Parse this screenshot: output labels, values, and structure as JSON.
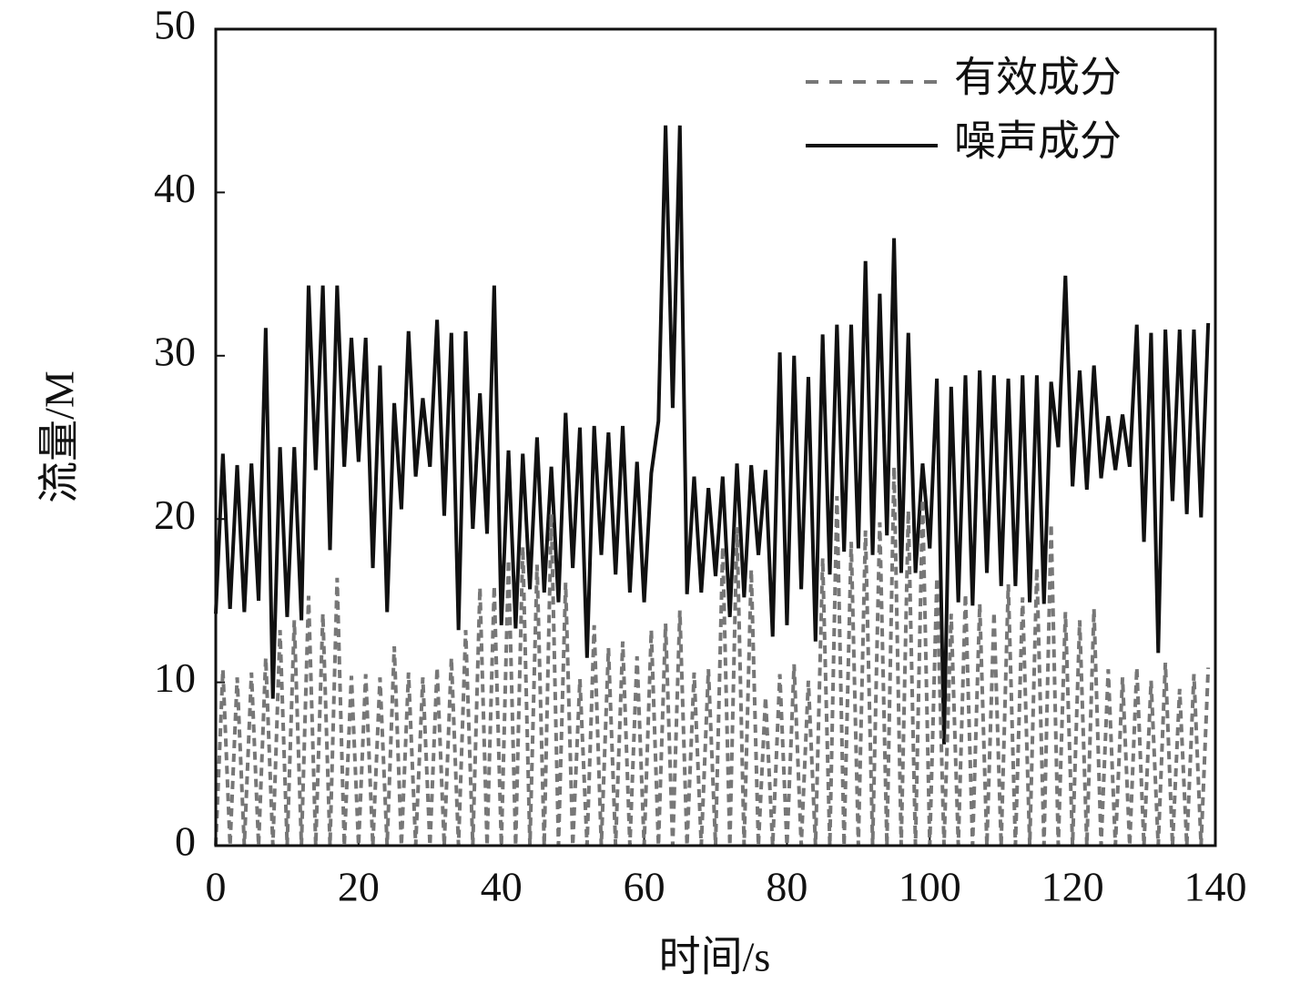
{
  "chart_data": {
    "type": "line",
    "x_label": "时间/s",
    "y_label": "流量/M",
    "x": [
      0,
      1,
      2,
      3,
      4,
      5,
      6,
      7,
      8,
      9,
      10,
      11,
      12,
      13,
      14,
      15,
      16,
      17,
      18,
      19,
      20,
      21,
      22,
      23,
      24,
      25,
      26,
      27,
      28,
      29,
      30,
      31,
      32,
      33,
      34,
      35,
      36,
      37,
      38,
      39,
      40,
      41,
      42,
      43,
      44,
      45,
      46,
      47,
      48,
      49,
      50,
      51,
      52,
      53,
      54,
      55,
      56,
      57,
      58,
      59,
      60,
      61,
      62,
      63,
      64,
      65,
      66,
      67,
      68,
      69,
      70,
      71,
      72,
      73,
      74,
      75,
      76,
      77,
      78,
      79,
      80,
      81,
      82,
      83,
      84,
      85,
      86,
      87,
      88,
      89,
      90,
      91,
      92,
      93,
      94,
      95,
      96,
      97,
      98,
      99,
      100,
      101,
      102,
      103,
      104,
      105,
      106,
      107,
      108,
      109,
      110,
      111,
      112,
      113,
      114,
      115,
      116,
      117,
      118,
      119,
      120,
      121,
      122,
      123,
      124,
      125,
      126,
      127,
      128,
      129,
      130,
      131,
      132,
      133,
      134,
      135,
      136,
      137,
      138,
      139
    ],
    "series": [
      {
        "name": "有效成分",
        "color": "#777777",
        "dashed": true,
        "values": [
          0,
          10.8,
          0,
          10.3,
          0,
          10.6,
          0,
          11.5,
          0,
          13.2,
          0,
          13.8,
          0,
          15.3,
          0,
          14.2,
          0,
          16.4,
          0,
          10.4,
          0,
          10.5,
          0,
          10.3,
          0,
          12.2,
          0,
          10.6,
          0,
          10.3,
          0,
          10.9,
          0,
          11.5,
          0,
          13.2,
          0,
          15.8,
          0,
          15.9,
          0,
          17.5,
          0,
          18.3,
          0,
          17.2,
          0,
          20.3,
          0,
          16.1,
          0,
          10.2,
          0,
          13.5,
          0,
          12.1,
          0,
          12.5,
          0,
          11.6,
          0,
          13.2,
          0,
          13.6,
          0,
          14.4,
          0,
          10.6,
          0,
          10.8,
          0,
          18.3,
          0,
          19.5,
          0,
          16.9,
          0,
          9.1,
          0,
          10.5,
          0,
          11.1,
          0,
          10.1,
          0,
          17.6,
          0,
          21.4,
          0,
          18.6,
          0,
          19.3,
          0,
          19.8,
          0,
          23.2,
          0,
          20.5,
          0,
          21.2,
          0,
          16.4,
          0,
          14.2,
          0,
          15.4,
          0,
          14.8,
          0,
          14.3,
          0,
          16.0,
          0,
          15.2,
          0,
          17.0,
          0,
          19.7,
          0,
          14.3,
          0,
          13.8,
          0,
          14.5,
          0,
          10.8,
          0,
          10.3,
          0,
          10.9,
          0,
          10.1,
          0,
          11.2,
          0,
          9.6,
          0,
          10.5,
          0,
          10.9
        ]
      },
      {
        "name": "噪声成分",
        "color": "#111111",
        "dashed": false,
        "values": [
          14.2,
          24.0,
          14.5,
          23.3,
          14.3,
          23.4,
          15.0,
          31.7,
          9.0,
          24.4,
          14.0,
          24.4,
          13.8,
          34.3,
          23.0,
          34.3,
          18.1,
          34.3,
          23.2,
          31.1,
          23.5,
          31.1,
          17.0,
          29.4,
          14.3,
          27.1,
          20.6,
          31.5,
          22.6,
          27.4,
          23.2,
          32.2,
          20.2,
          31.4,
          13.2,
          31.5,
          19.4,
          27.7,
          19.1,
          34.3,
          13.5,
          24.2,
          13.3,
          24.0,
          15.7,
          25.0,
          15.5,
          23.2,
          14.9,
          26.5,
          17.0,
          25.6,
          11.5,
          25.7,
          17.8,
          25.3,
          16.6,
          25.7,
          15.5,
          23.5,
          14.9,
          22.8,
          26.0,
          44.1,
          26.8,
          44.1,
          15.4,
          22.6,
          15.5,
          21.9,
          16.5,
          22.6,
          14.0,
          23.4,
          15.2,
          23.3,
          17.8,
          23.0,
          12.8,
          30.2,
          13.5,
          30.0,
          15.7,
          28.7,
          12.5,
          31.3,
          16.6,
          31.9,
          18.0,
          31.9,
          18.2,
          35.8,
          17.8,
          33.8,
          19.0,
          37.2,
          16.7,
          31.4,
          16.7,
          23.4,
          18.2,
          28.6,
          6.2,
          28.1,
          14.9,
          28.8,
          14.7,
          29.1,
          16.7,
          28.8,
          15.9,
          28.6,
          15.9,
          28.8,
          14.9,
          28.8,
          14.8,
          28.4,
          24.4,
          34.9,
          22.0,
          29.1,
          21.8,
          29.4,
          22.5,
          26.3,
          23.0,
          26.4,
          23.2,
          31.9,
          18.6,
          31.4,
          11.8,
          31.6,
          21.1,
          31.6,
          20.3,
          31.6,
          20.1,
          32.0
        ]
      }
    ],
    "xlim": [
      0,
      140
    ],
    "xticks": [
      0,
      20,
      40,
      60,
      80,
      100,
      120,
      140
    ],
    "ylim": [
      0,
      50
    ],
    "yticks": [
      0,
      10,
      20,
      30,
      40,
      50
    ],
    "legend": "upper right"
  }
}
